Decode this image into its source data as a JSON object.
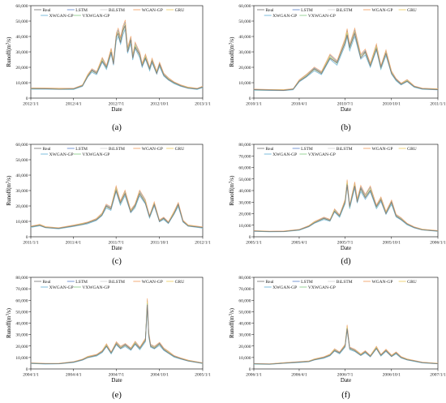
{
  "legend": [
    "Real",
    "LSTM",
    "BiLSTM",
    "WGAN-GP",
    "GRU",
    "XWGAN-GP",
    "VXWGAN-GP"
  ],
  "colors": {
    "Real": "#7f7f7f",
    "LSTM": "#6a8fd1",
    "BiLSTM": "#d6d6d6",
    "WGAN-GP": "#f2a46a",
    "GRU": "#f0d26a",
    "XWGAN-GP": "#6fb7d9",
    "VXWGAN-GP": "#8fcf8f"
  },
  "ylabel": "Runoff(m³/s)",
  "xlabel": "Date",
  "chart_data": [
    {
      "type": "line",
      "label": "(a)",
      "title": "",
      "xlabel": "Date",
      "ylabel": "Runoff(m³/s)",
      "x_ticks": [
        "2012/1/1",
        "2012/4/1",
        "2012/7/1",
        "2012/10/1",
        "2013/1/1"
      ],
      "y_ticks": [
        0,
        10000,
        20000,
        30000,
        40000,
        50000,
        60000
      ],
      "ylim": [
        0,
        60000
      ],
      "xlim": [
        "2012/1/1",
        "2013/1/1"
      ],
      "series": [
        {
          "name": "Real",
          "x": [
            "2012/1/1",
            "2012/2/1",
            "2012/3/1",
            "2012/4/1",
            "2012/4/20",
            "2012/5/1",
            "2012/5/10",
            "2012/5/20",
            "2012/6/1",
            "2012/6/10",
            "2012/6/20",
            "2012/6/25",
            "2012/7/1",
            "2012/7/5",
            "2012/7/10",
            "2012/7/15",
            "2012/7/20",
            "2012/7/25",
            "2012/8/1",
            "2012/8/5",
            "2012/8/10",
            "2012/8/20",
            "2012/8/25",
            "2012/9/1",
            "2012/9/10",
            "2012/9/15",
            "2012/9/25",
            "2012/10/1",
            "2012/10/10",
            "2012/10/20",
            "2012/11/1",
            "2012/11/15",
            "2012/12/1",
            "2012/12/20",
            "2013/1/1"
          ],
          "values": [
            6200,
            6100,
            5800,
            6000,
            8000,
            14000,
            18000,
            16000,
            24000,
            20000,
            30000,
            22000,
            40000,
            42000,
            36000,
            44000,
            47000,
            30000,
            38000,
            26000,
            33000,
            28000,
            21000,
            26000,
            19000,
            24000,
            16000,
            22000,
            15000,
            12000,
            10000,
            8000,
            6500,
            6000,
            7200
          ]
        }
      ]
    },
    {
      "type": "line",
      "label": "(b)",
      "title": "",
      "xlabel": "Date",
      "ylabel": "Runoff(m³/s)",
      "x_ticks": [
        "2010/1/1",
        "2010/4/1",
        "2010/7/1",
        "2010/10/1",
        "2011/1/1"
      ],
      "y_ticks": [
        0,
        10000,
        20000,
        30000,
        40000,
        50000,
        60000
      ],
      "ylim": [
        0,
        60000
      ],
      "xlim": [
        "2010/1/1",
        "2011/1/1"
      ],
      "series": [
        {
          "name": "Real",
          "x": [
            "2010/1/1",
            "2010/2/1",
            "2010/3/1",
            "2010/3/20",
            "2010/4/1",
            "2010/4/15",
            "2010/5/1",
            "2010/5/15",
            "2010/6/1",
            "2010/6/15",
            "2010/7/1",
            "2010/7/5",
            "2010/7/10",
            "2010/7/20",
            "2010/8/1",
            "2010/8/10",
            "2010/8/20",
            "2010/9/1",
            "2010/9/10",
            "2010/9/20",
            "2010/10/1",
            "2010/10/10",
            "2010/10/20",
            "2010/11/1",
            "2010/11/15",
            "2010/12/1",
            "2011/1/1"
          ],
          "values": [
            5500,
            5200,
            5000,
            5800,
            11000,
            14000,
            19000,
            16000,
            26000,
            23000,
            36000,
            41000,
            33000,
            42000,
            26000,
            30000,
            21000,
            32000,
            20000,
            29000,
            16000,
            12000,
            9000,
            11000,
            7500,
            6000,
            5500
          ]
        }
      ]
    },
    {
      "type": "line",
      "label": "(c)",
      "title": "",
      "xlabel": "Date",
      "ylabel": "Runoff(m³/s)",
      "x_ticks": [
        "2011/1/1",
        "2011/4/1",
        "2011/7/1",
        "2011/10/1",
        "2012/1/1"
      ],
      "y_ticks": [
        0,
        10000,
        20000,
        30000,
        40000,
        50000,
        60000
      ],
      "ylim": [
        0,
        60000
      ],
      "xlim": [
        "2011/1/1",
        "2012/1/1"
      ],
      "series": [
        {
          "name": "Real",
          "x": [
            "2011/1/1",
            "2011/1/20",
            "2011/2/1",
            "2011/3/1",
            "2011/4/1",
            "2011/4/20",
            "2011/5/1",
            "2011/5/20",
            "2011/6/1",
            "2011/6/10",
            "2011/6/20",
            "2011/7/1",
            "2011/7/10",
            "2011/7/20",
            "2011/8/1",
            "2011/8/10",
            "2011/8/20",
            "2011/9/1",
            "2011/9/10",
            "2011/9/20",
            "2011/10/1",
            "2011/10/10",
            "2011/10/20",
            "2011/11/1",
            "2011/11/10",
            "2011/11/20",
            "2011/12/1",
            "2012/1/1"
          ],
          "values": [
            6500,
            7500,
            6000,
            5500,
            7000,
            8000,
            9000,
            11000,
            14000,
            20000,
            18000,
            30000,
            22000,
            28000,
            16000,
            20000,
            28000,
            22000,
            13000,
            21000,
            10000,
            12000,
            9000,
            15000,
            21000,
            10000,
            7000,
            6000
          ]
        }
      ]
    },
    {
      "type": "line",
      "label": "(d)",
      "title": "",
      "xlabel": "Date",
      "ylabel": "Runoff(m³/s)",
      "x_ticks": [
        "2005/1/1",
        "2005/4/1",
        "2005/7/1",
        "2005/10/1",
        "2006/1/1"
      ],
      "y_ticks": [
        0,
        10000,
        20000,
        30000,
        40000,
        50000,
        60000,
        70000,
        80000
      ],
      "ylim": [
        0,
        80000
      ],
      "xlim": [
        "2005/1/1",
        "2006/1/1"
      ],
      "series": [
        {
          "name": "Real",
          "x": [
            "2005/1/1",
            "2005/2/1",
            "2005/3/1",
            "2005/4/1",
            "2005/4/20",
            "2005/5/1",
            "2005/5/20",
            "2005/6/1",
            "2005/6/10",
            "2005/6/20",
            "2005/7/1",
            "2005/7/5",
            "2005/7/10",
            "2005/7/20",
            "2005/7/25",
            "2005/8/1",
            "2005/8/10",
            "2005/8/20",
            "2005/9/1",
            "2005/9/10",
            "2005/9/20",
            "2005/10/1",
            "2005/10/10",
            "2005/10/20",
            "2005/11/1",
            "2005/11/15",
            "2005/12/1",
            "2006/1/1"
          ],
          "values": [
            5000,
            4500,
            4500,
            6000,
            9000,
            12000,
            16000,
            14000,
            22000,
            18000,
            30000,
            45000,
            26000,
            44000,
            30000,
            42000,
            34000,
            40000,
            26000,
            32000,
            20000,
            30000,
            18000,
            15000,
            11000,
            8000,
            6000,
            5000
          ]
        }
      ]
    },
    {
      "type": "line",
      "label": "(e)",
      "title": "",
      "xlabel": "Date",
      "ylabel": "Runoff(m³/s)",
      "x_ticks": [
        "2004/1/1",
        "2004/4/1",
        "2004/7/1",
        "2004/10/1",
        "2005/1/1"
      ],
      "y_ticks": [
        0,
        10000,
        20000,
        30000,
        40000,
        50000,
        60000,
        70000,
        80000
      ],
      "ylim": [
        0,
        80000
      ],
      "xlim": [
        "2004/1/1",
        "2005/1/1"
      ],
      "series": [
        {
          "name": "Real",
          "x": [
            "2004/1/1",
            "2004/2/1",
            "2004/3/1",
            "2004/4/1",
            "2004/4/20",
            "2004/5/1",
            "2004/5/20",
            "2004/6/1",
            "2004/6/10",
            "2004/6/20",
            "2004/7/1",
            "2004/7/10",
            "2004/7/20",
            "2004/8/1",
            "2004/8/10",
            "2004/8/20",
            "2004/9/1",
            "2004/9/5",
            "2004/9/8",
            "2004/9/12",
            "2004/9/20",
            "2004/10/1",
            "2004/10/10",
            "2004/10/20",
            "2004/11/1",
            "2004/11/15",
            "2004/12/1",
            "2005/1/1"
          ],
          "values": [
            5000,
            4500,
            4500,
            6000,
            8000,
            10000,
            12000,
            15000,
            20000,
            14000,
            22000,
            18000,
            21000,
            17000,
            22000,
            18000,
            25000,
            56000,
            30000,
            20000,
            18000,
            22000,
            17000,
            14000,
            11000,
            9000,
            7000,
            5000
          ]
        }
      ]
    },
    {
      "type": "line",
      "label": "(f)",
      "title": "",
      "xlabel": "Date",
      "ylabel": "Runoff(m³/s)",
      "x_ticks": [
        "2006/1/1",
        "2006/4/1",
        "2006/7/1",
        "2006/10/1",
        "2007/1/1"
      ],
      "y_ticks": [
        0,
        10000,
        20000,
        30000,
        40000,
        50000,
        60000,
        70000,
        80000
      ],
      "ylim": [
        0,
        80000
      ],
      "xlim": [
        "2006/1/1",
        "2007/1/1"
      ],
      "series": [
        {
          "name": "Real",
          "x": [
            "2006/1/1",
            "2006/2/1",
            "2006/3/1",
            "2006/4/1",
            "2006/4/20",
            "2006/5/1",
            "2006/5/20",
            "2006/6/1",
            "2006/6/10",
            "2006/6/20",
            "2006/7/1",
            "2006/7/5",
            "2006/7/10",
            "2006/7/20",
            "2006/8/1",
            "2006/8/10",
            "2006/8/20",
            "2006/9/1",
            "2006/9/10",
            "2006/9/20",
            "2006/10/1",
            "2006/10/10",
            "2006/10/20",
            "2006/11/1",
            "2006/11/15",
            "2006/12/1",
            "2007/1/1"
          ],
          "values": [
            4500,
            4200,
            5000,
            6000,
            6500,
            8000,
            10000,
            12000,
            16000,
            14000,
            20000,
            35000,
            18000,
            16000,
            12000,
            15000,
            11000,
            18000,
            12000,
            16000,
            11000,
            14000,
            10000,
            8000,
            7000,
            5500,
            4500
          ]
        }
      ]
    }
  ]
}
